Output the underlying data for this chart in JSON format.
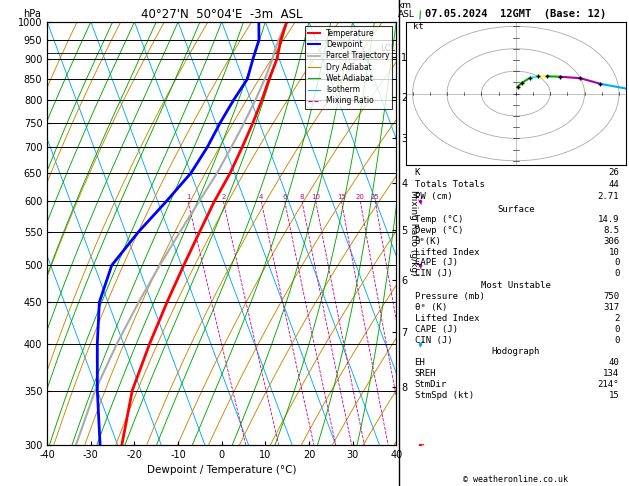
{
  "title_left": "40°27'N  50°04'E  -3m  ASL",
  "title_right": "07.05.2024  12GMT  (Base: 12)",
  "xlabel": "Dewpoint / Temperature (°C)",
  "pressure_levels": [
    300,
    350,
    400,
    450,
    500,
    550,
    600,
    650,
    700,
    750,
    800,
    850,
    900,
    950,
    1000
  ],
  "T_min": -40,
  "T_max": 40,
  "isotherm_color": "#00aaff",
  "dry_adiabat_color": "#cc8800",
  "wet_adiabat_color": "#00aa00",
  "mixing_ratio_color": "#cc0099",
  "temp_color": "#ff0000",
  "dewpoint_color": "#0000ff",
  "parcel_color": "#aaaaaa",
  "km_ticks": [
    1,
    2,
    3,
    4,
    5,
    6,
    7,
    8
  ],
  "km_pressures": [
    905,
    808,
    718,
    632,
    553,
    480,
    413,
    354
  ],
  "lcl_pressure": 915,
  "mixing_ratio_values": [
    1,
    2,
    4,
    6,
    8,
    10,
    15,
    20,
    25
  ],
  "temperature_profile": {
    "pressure": [
      1000,
      950,
      900,
      850,
      800,
      750,
      700,
      650,
      600,
      550,
      500,
      450,
      400,
      350,
      300
    ],
    "temp": [
      14.9,
      12.0,
      9.5,
      6.0,
      2.5,
      -1.5,
      -6.0,
      -11.0,
      -17.0,
      -23.0,
      -29.5,
      -36.5,
      -44.0,
      -52.0,
      -59.0
    ]
  },
  "dewpoint_profile": {
    "pressure": [
      1000,
      950,
      900,
      850,
      800,
      750,
      700,
      650,
      600,
      550,
      500,
      450,
      400,
      350,
      300
    ],
    "temp": [
      8.5,
      7.0,
      4.0,
      1.0,
      -4.0,
      -9.0,
      -14.0,
      -20.0,
      -28.0,
      -37.0,
      -46.0,
      -52.0,
      -56.0,
      -60.0,
      -64.0
    ]
  },
  "parcel_profile": {
    "pressure": [
      1000,
      950,
      915,
      900,
      850,
      800,
      750,
      700,
      650,
      600,
      550,
      500,
      450,
      400,
      350,
      300
    ],
    "temp": [
      14.9,
      11.5,
      9.3,
      8.5,
      5.0,
      1.0,
      -3.5,
      -8.5,
      -14.0,
      -20.5,
      -27.5,
      -35.0,
      -43.0,
      -51.5,
      -60.5,
      -69.5
    ]
  },
  "wind_barbs": [
    {
      "pressure": 300,
      "spd": 40,
      "dir": 270,
      "color": "#ff0000"
    },
    {
      "pressure": 400,
      "spd": 25,
      "dir": 260,
      "color": "#00aaff"
    },
    {
      "pressure": 500,
      "spd": 20,
      "dir": 250,
      "color": "#aa00aa"
    },
    {
      "pressure": 600,
      "spd": 15,
      "dir": 240,
      "color": "#aa00aa"
    },
    {
      "pressure": 700,
      "spd": 12,
      "dir": 230,
      "color": "#00aa00"
    },
    {
      "pressure": 800,
      "spd": 10,
      "dir": 220,
      "color": "#ffff00"
    },
    {
      "pressure": 900,
      "spd": 8,
      "dir": 210,
      "color": "#00ffff"
    },
    {
      "pressure": 950,
      "spd": 5,
      "dir": 200,
      "color": "#00aa00"
    },
    {
      "pressure": 1000,
      "spd": 3,
      "dir": 190,
      "color": "#00aa00"
    }
  ],
  "info_panel": {
    "K": 26,
    "Totals_Totals": 44,
    "PW_cm": 2.71,
    "Surface_Temp": 14.9,
    "Surface_Dewp": 8.5,
    "Surface_theta_e": 306,
    "Surface_LI": 10,
    "Surface_CAPE": 0,
    "Surface_CIN": 0,
    "MU_Pressure": 750,
    "MU_theta_e": 317,
    "MU_LI": 2,
    "MU_CAPE": 0,
    "MU_CIN": 0,
    "Hodo_EH": 40,
    "Hodo_SREH": 134,
    "Hodo_StmDir": 214,
    "Hodo_StmSpd": 15
  }
}
